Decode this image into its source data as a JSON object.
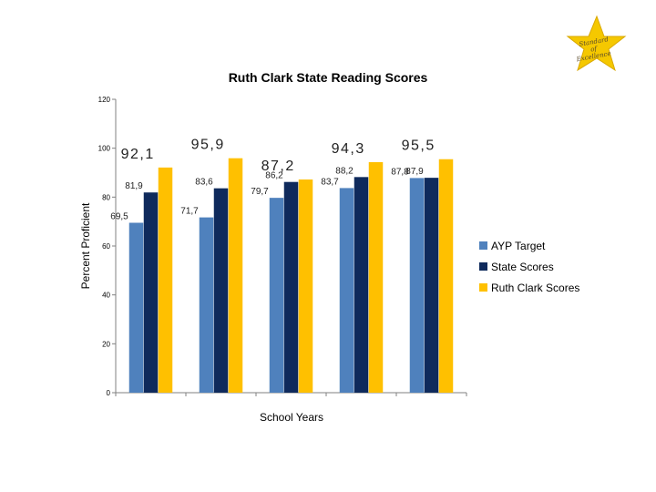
{
  "chart_data": {
    "type": "bar",
    "title": "Ruth Clark State Reading Scores",
    "xlabel": "School Years",
    "ylabel": "Percent Proficient",
    "ylim": [
      0,
      120
    ],
    "yticks": [
      "0",
      "20",
      "40",
      "60",
      "80",
      "100",
      "120"
    ],
    "categories": [
      "",
      "",
      "",
      "",
      ""
    ],
    "series": [
      {
        "name": "AYP Target",
        "color": "#4f81bd",
        "values": [
          69.5,
          71.7,
          79.7,
          83.7,
          87.8
        ],
        "labels": [
          "69,5",
          "71,7",
          "79,7",
          "83,7",
          "87,8"
        ]
      },
      {
        "name": "State Scores",
        "color": "#0f2a5c",
        "values": [
          81.9,
          83.6,
          86.2,
          88.2,
          87.9
        ],
        "labels": [
          "81,9",
          "83,6",
          "86,2",
          "88,2",
          "87,9"
        ]
      },
      {
        "name": "Ruth Clark Scores",
        "color": "#ffc000",
        "values": [
          92.1,
          95.9,
          87.2,
          94.3,
          95.5
        ],
        "labels": [
          "92,1",
          "95,9",
          "87,2",
          "94,3",
          "95,5"
        ]
      }
    ],
    "legend_position": "right",
    "grid": false
  },
  "badge": {
    "line1": "Standard",
    "line2": "of",
    "line3": "Excellence"
  }
}
